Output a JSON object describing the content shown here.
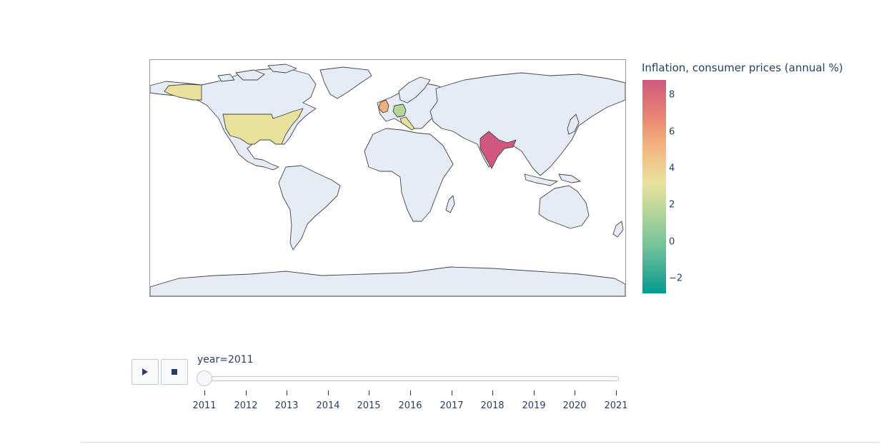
{
  "colorbar": {
    "title": "Inflation, consumer prices (annual %)",
    "ticks": [
      "8",
      "6",
      "4",
      "2",
      "0",
      "−2"
    ]
  },
  "animation": {
    "play_icon": "play-icon",
    "stop_icon": "stop-icon",
    "current_label": "year=2011",
    "current_index": 0,
    "years": [
      "2011",
      "2012",
      "2013",
      "2014",
      "2015",
      "2016",
      "2017",
      "2018",
      "2019",
      "2020",
      "2021"
    ]
  },
  "highlighted_colors": {
    "india": "#d0587e",
    "usa": "#e9e29c",
    "uk": "#f4b07c",
    "germany": "#b5d59a",
    "italy": "#e9e29c",
    "land": "#e5ecf6"
  }
}
